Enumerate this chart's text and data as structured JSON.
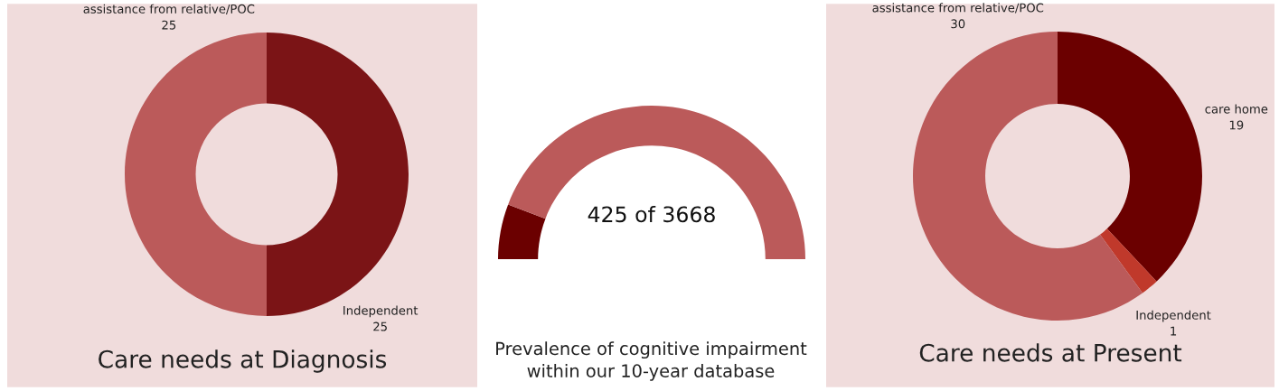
{
  "chart_data": [
    {
      "type": "donut",
      "title": "Care needs at Diagnosis",
      "categories": [
        "Independent",
        "assistance from relative/POC"
      ],
      "values": [
        25,
        25
      ],
      "colors": [
        "#7b1416",
        "#bb5a5a"
      ],
      "data_labels": true
    },
    {
      "type": "donut",
      "title": "Prevalence of cognitive impairment\nwithin our 10-year database",
      "categories": [
        null,
        null
      ],
      "values": [
        11.6,
        88.4
      ],
      "colors": [
        "#6b0000",
        "#bb5a5a"
      ],
      "annotations": [
        "425 of 3668"
      ]
    },
    {
      "type": "donut",
      "title": "Care needs at Present",
      "categories": [
        "care home",
        "Independent",
        "assistance from relative/POC"
      ],
      "values": [
        19,
        1,
        30
      ],
      "colors": [
        "#6b0000",
        "#c0392b",
        "#bb5a5a"
      ],
      "data_labels": true
    }
  ]
}
